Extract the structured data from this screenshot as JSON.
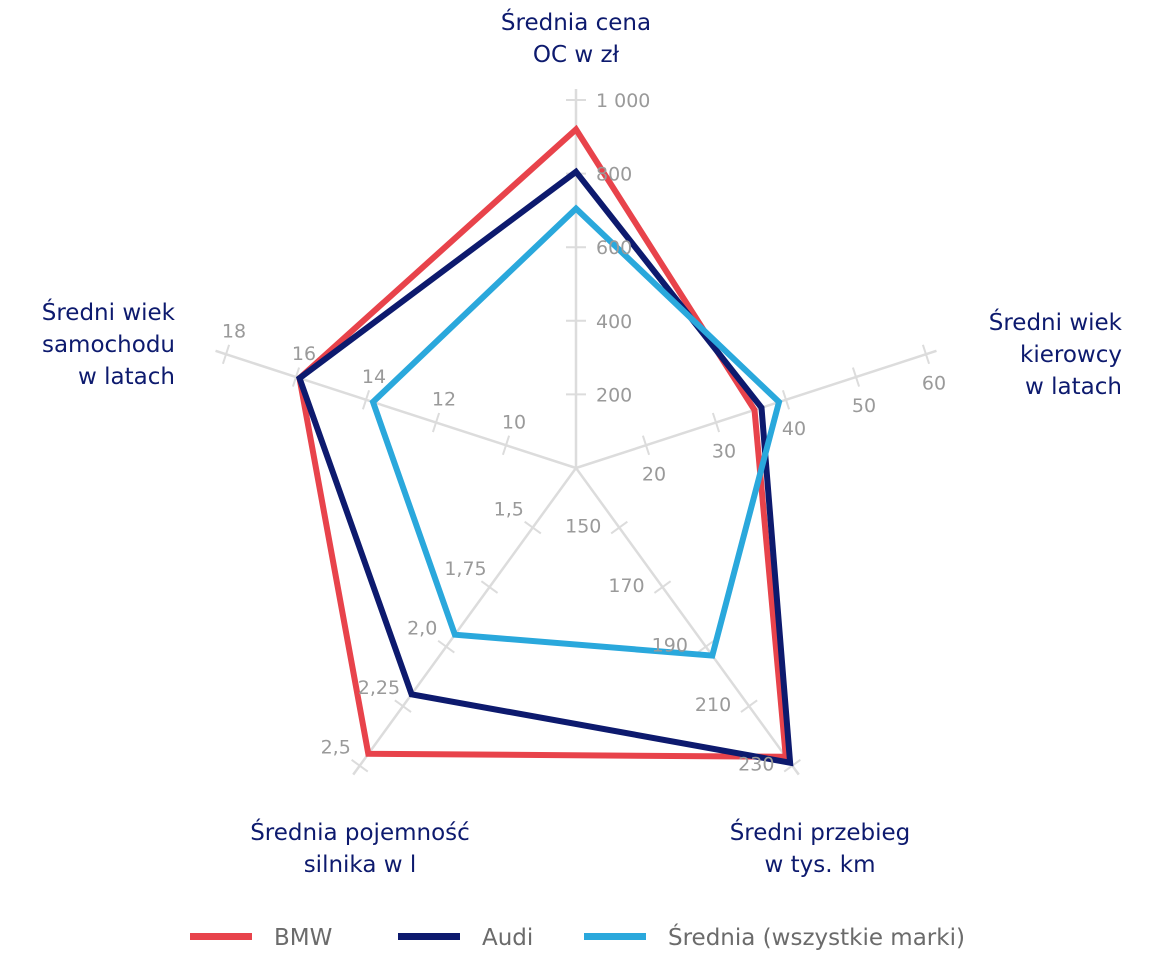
{
  "chart_data": {
    "type": "radar",
    "axes": [
      {
        "label": [
          "Średnia cena",
          "OC w zł"
        ],
        "ticks": [
          "200",
          "400",
          "600",
          "800",
          "1 000"
        ],
        "range": [
          0,
          1000
        ]
      },
      {
        "label": [
          "Średni wiek",
          "kierowcy",
          "w latach"
        ],
        "ticks": [
          "20",
          "30",
          "40",
          "50",
          "60"
        ],
        "range": [
          10,
          60
        ]
      },
      {
        "label": [
          "Średni przebieg",
          "w tys. km"
        ],
        "ticks": [
          "150",
          "170",
          "190",
          "210",
          "230"
        ],
        "range": [
          130,
          230
        ]
      },
      {
        "label": [
          "Średnia pojemność",
          "silnika w l"
        ],
        "ticks": [
          "1,5",
          "1,75",
          "2,0",
          "2,25",
          "2,5"
        ],
        "range": [
          1.25,
          2.5
        ]
      },
      {
        "label": [
          "Średni wiek",
          "samochodu",
          "w latach"
        ],
        "ticks": [
          "10",
          "12",
          "14",
          "16",
          "18"
        ],
        "range": [
          8,
          18
        ]
      }
    ],
    "series": [
      {
        "name": "BMW",
        "color": "#e8434b",
        "values": [
          920,
          35.5,
          227,
          2.45,
          15.9
        ]
      },
      {
        "name": "Audi",
        "color": "#0d1a6e",
        "values": [
          805,
          36.5,
          229,
          2.2,
          15.9
        ]
      },
      {
        "name": "Średnia (wszystkie marki)",
        "color": "#2aa8dc",
        "values": [
          705,
          39,
          193,
          1.95,
          13.8
        ]
      }
    ],
    "legend_position": "bottom"
  }
}
